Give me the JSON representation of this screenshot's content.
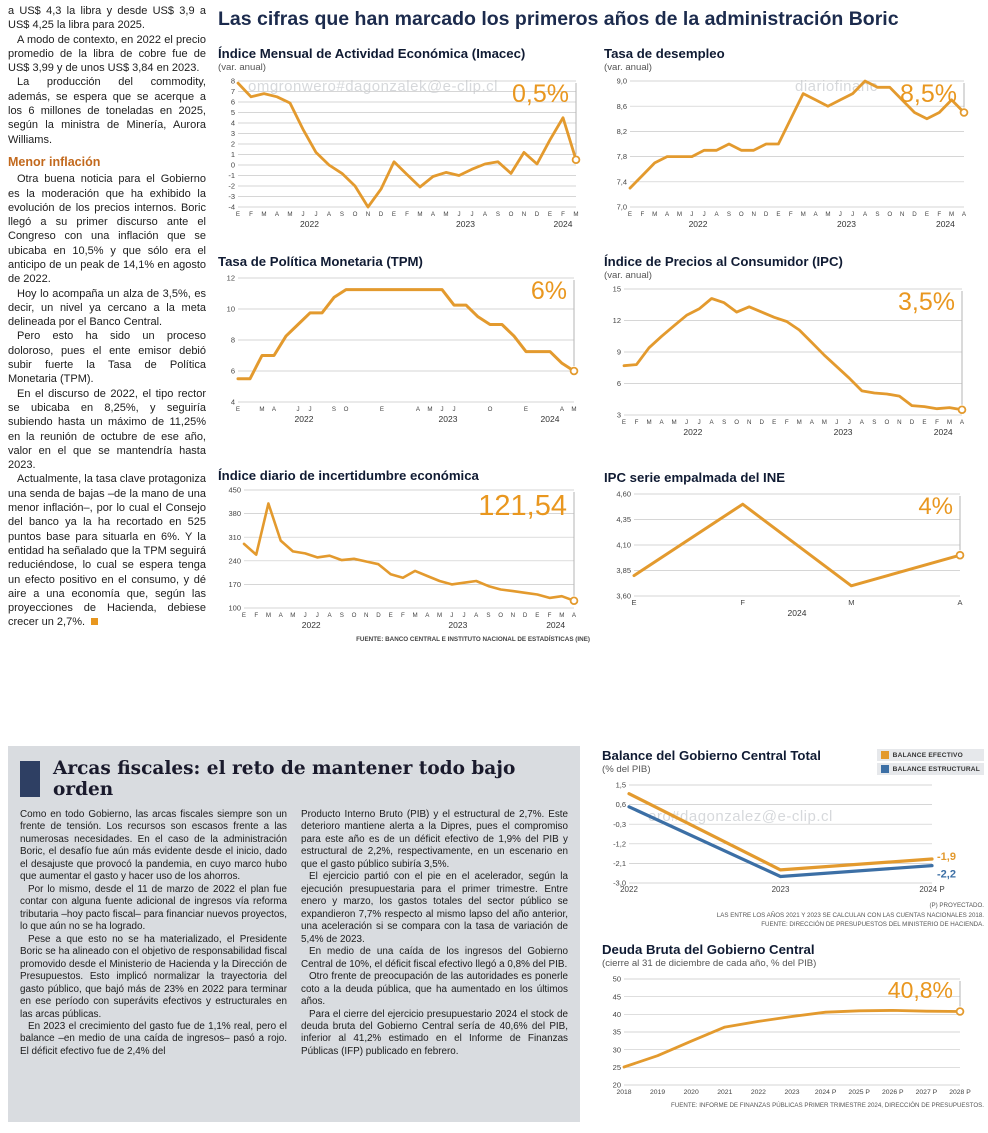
{
  "watermarks": [
    "omgronwero#dagonzalek@e-clip.cl",
    "diariofinanc",
    "ero#dagonzalez@e-clip.cl"
  ],
  "left_column": {
    "paragraphs": [
      "a US$ 4,3 la libra y desde US$ 3,9 a US$ 4,25 la libra para 2025.",
      "A modo de contexto, en 2022 el precio promedio de la libra de cobre fue de US$ 3,99 y de unos US$ 3,84 en 2023.",
      "La producción del commodity, además, se espera que se acerque a los 6 millones de toneladas en 2025, según la ministra de Minería, Aurora Williams.",
      "Otra buena noticia para el Gobierno es la moderación que ha exhibido la evolución de los precios internos. Boric llegó a su primer discurso ante el Congreso con una inflación que se ubicaba en 10,5% y que sólo era el anticipo de un peak de 14,1% en agosto de 2022.",
      "Hoy lo acompaña un alza de 3,5%, es decir, un nivel ya cercano a la meta delineada por el Banco Central.",
      "Pero esto ha sido un proceso doloroso, pues el ente emisor debió subir fuerte la Tasa de Política Monetaria (TPM).",
      "En el discurso de 2022, el tipo rector se ubicaba en 8,25%, y seguiría subiendo hasta un máximo de 11,25% en la reunión de octubre de ese año, valor en el que se mantendría hasta 2023.",
      "Actualmente, la tasa clave protagoniza una senda de bajas –de la mano de una menor inflación–, por lo cual el Consejo del banco ya la ha recortado en 525 puntos base para situarla en 6%. Y la entidad ha señalado que la TPM seguirá reduciéndose, lo cual se espera tenga un efecto positivo en el consumo, y dé aire a una economía que, según las proyecciones de Hacienda, debiese crecer un 2,7%."
    ],
    "subheading": "Menor inflación"
  },
  "main": {
    "title": "Las cifras que han marcado los primeros años de la administración Boric",
    "source_note": "FUENTE: BANCO CENTRAL E INSTITUTO NACIONAL DE ESTADÍSTICAS (INE)"
  },
  "fiscal": {
    "title": "Arcas fiscales: el reto de mantener todo bajo orden",
    "col1": [
      "Como en todo Gobierno, las arcas fiscales siempre son un frente de tensión. Los recursos son escasos frente a las numerosas necesidades. En el caso de la administración Boric, el desafío fue aún más evidente desde el inicio, dado el desajuste que provocó la pandemia, en cuyo marco hubo que aumentar el gasto y hacer uso de los ahorros.",
      "Por lo mismo, desde el 11 de marzo de 2022 el plan fue contar con alguna fuente adicional de ingresos vía reforma tributaria –hoy pacto fiscal– para financiar nuevos proyectos, lo que aún no se ha logrado.",
      "Pese a que esto no se ha materializado, el Presidente Boric se ha alineado con el objetivo de responsabilidad fiscal promovido desde el Ministerio de Hacienda y la Dirección de Presupuestos. Esto implicó normalizar la trayectoria del gasto público, que bajó más de 23% en 2022 para terminar en ese período con superávits efectivos y estructurales en las arcas públicas.",
      "En 2023 el crecimiento del gasto fue de 1,1% real, pero el balance –en medio de una caída de ingresos– pasó a rojo. El déficit efectivo fue de 2,4% del"
    ],
    "col2": [
      "Producto Interno Bruto (PIB) y el estructural de 2,7%. Este deterioro mantiene alerta a la Dipres, pues el compromiso para este año es de un déficit efectivo de 1,9% del PIB y estructural de 2,2%, respectivamente, en un escenario en que el gasto público subiría 3,5%.",
      "El ejercicio partió con el pie en el acelerador, según la ejecución presupuestaria para el primer trimestre. Entre enero y marzo, los gastos totales del sector público se expandieron 7,7% respecto al mismo lapso del año anterior, una aceleración si se compara con la tasa de variación de 5,4% de 2023.",
      "En medio de una caída de los ingresos del Gobierno Central de 10%, el déficit fiscal efectivo llegó a 0,8% del PIB.",
      "Otro frente de preocupación de las autoridades es ponerle coto a la deuda pública, que ha aumentado en los últimos años.",
      "Para el cierre del ejercicio presupuestario 2024 el stock de deuda bruta del Gobierno Central sería de 40,6% del PIB, inferior al 41,2% estimado en el Informe de Finanzas Públicas (IFP) publicado en febrero."
    ]
  },
  "colors": {
    "orange": "#E39A2E",
    "blue": "#3C6FA5",
    "headline_navy": "#1C2B4D",
    "subhead_brown": "#C2691D",
    "panel_gray": "#D9DCE0",
    "header_bar_navy": "#2E3F63"
  },
  "chart_data": [
    {
      "type": "line",
      "title": "Índice Mensual de Actividad Económica (Imacec)",
      "subtitle": "(var. anual)",
      "highlight": "0,5%",
      "color": "#E39A2E",
      "ylim": [
        -4,
        8
      ],
      "y_ticks": [
        {
          "v": 8,
          "l": "8"
        },
        {
          "v": 7,
          "l": "7"
        },
        {
          "v": 6,
          "l": "6"
        },
        {
          "v": 5,
          "l": "5"
        },
        {
          "v": 4,
          "l": "4"
        },
        {
          "v": 3,
          "l": "3"
        },
        {
          "v": 2,
          "l": "2"
        },
        {
          "v": 1,
          "l": "1"
        },
        {
          "v": 0,
          "l": "0"
        },
        {
          "v": -1,
          "l": "-1"
        },
        {
          "v": -2,
          "l": "-2"
        },
        {
          "v": -3,
          "l": "-3"
        },
        {
          "v": -4,
          "l": "-4"
        }
      ],
      "x_labels": [
        "E",
        "F",
        "M",
        "A",
        "M",
        "J",
        "J",
        "A",
        "S",
        "O",
        "N",
        "D",
        "E",
        "F",
        "M",
        "A",
        "M",
        "J",
        "J",
        "A",
        "S",
        "O",
        "N",
        "D",
        "E",
        "F",
        "M"
      ],
      "year_labels": [
        {
          "label": "2022",
          "from": 0,
          "to": 11
        },
        {
          "label": "2023",
          "from": 12,
          "to": 23
        },
        {
          "label": "2024",
          "from": 24,
          "to": 26
        }
      ],
      "values": [
        7.8,
        6.5,
        6.8,
        6.5,
        5.9,
        3.4,
        1.2,
        0.0,
        -0.8,
        -2.0,
        -4.0,
        -2.3,
        0.3,
        -0.9,
        -2.1,
        -1.1,
        -0.7,
        -1.0,
        -0.4,
        0.1,
        0.3,
        -0.8,
        1.2,
        0.1,
        2.4,
        4.5,
        0.5
      ]
    },
    {
      "type": "line",
      "title": "Tasa de desempleo",
      "subtitle": "(var. anual)",
      "highlight": "8,5%",
      "color": "#E39A2E",
      "ylim": [
        7.0,
        9.0
      ],
      "y_ticks": [
        {
          "v": 9.0,
          "l": "9,0"
        },
        {
          "v": 8.6,
          "l": "8,6"
        },
        {
          "v": 8.2,
          "l": "8,2"
        },
        {
          "v": 7.8,
          "l": "7,8"
        },
        {
          "v": 7.4,
          "l": "7,4"
        },
        {
          "v": 7.0,
          "l": "7,0"
        }
      ],
      "x_labels": [
        "E",
        "F",
        "M",
        "A",
        "M",
        "J",
        "J",
        "A",
        "S",
        "O",
        "N",
        "D",
        "E",
        "F",
        "M",
        "A",
        "M",
        "J",
        "J",
        "A",
        "S",
        "O",
        "N",
        "D",
        "E",
        "F",
        "M",
        "A"
      ],
      "year_labels": [
        {
          "label": "2022",
          "from": 0,
          "to": 11
        },
        {
          "label": "2023",
          "from": 12,
          "to": 23
        },
        {
          "label": "2024",
          "from": 24,
          "to": 27
        }
      ],
      "values": [
        7.3,
        7.5,
        7.7,
        7.8,
        7.8,
        7.8,
        7.9,
        7.9,
        8.0,
        7.9,
        7.9,
        8.0,
        8.0,
        8.4,
        8.8,
        8.7,
        8.6,
        8.7,
        8.8,
        9.0,
        8.9,
        8.9,
        8.7,
        8.5,
        8.4,
        8.5,
        8.7,
        8.5
      ]
    },
    {
      "type": "line",
      "title": "Tasa de Política Monetaria (TPM)",
      "subtitle": "",
      "highlight": "6%",
      "color": "#E39A2E",
      "ylim": [
        4,
        12
      ],
      "y_ticks": [
        {
          "v": 12,
          "l": "12"
        },
        {
          "v": 10,
          "l": "10"
        },
        {
          "v": 8,
          "l": "8"
        },
        {
          "v": 6,
          "l": "6"
        },
        {
          "v": 4,
          "l": "4"
        }
      ],
      "x_labels": [
        "E",
        "",
        "M",
        "A",
        "",
        "J",
        "J",
        "",
        "S",
        "O",
        "",
        "",
        "E",
        "",
        "",
        "A",
        "M",
        "J",
        "J",
        "",
        "",
        "O",
        "",
        "",
        "E",
        "",
        "",
        "A",
        "M"
      ],
      "year_labels": [
        {
          "label": "2022",
          "from": 0,
          "to": 11
        },
        {
          "label": "2023",
          "from": 12,
          "to": 23
        },
        {
          "label": "2024",
          "from": 24,
          "to": 28
        }
      ],
      "values": [
        5.5,
        5.5,
        7.0,
        7.0,
        8.25,
        9.0,
        9.75,
        9.75,
        10.75,
        11.25,
        11.25,
        11.25,
        11.25,
        11.25,
        11.25,
        11.25,
        11.25,
        11.25,
        10.25,
        10.25,
        9.5,
        9.0,
        9.0,
        8.25,
        7.25,
        7.25,
        7.25,
        6.5,
        6.0
      ]
    },
    {
      "type": "line",
      "title": "Índice de Precios al Consumidor (IPC)",
      "subtitle": "(var. anual)",
      "highlight": "3,5%",
      "color": "#E39A2E",
      "ylim": [
        3,
        15
      ],
      "y_ticks": [
        {
          "v": 15,
          "l": "15"
        },
        {
          "v": 12,
          "l": "12"
        },
        {
          "v": 9,
          "l": "9"
        },
        {
          "v": 6,
          "l": "6"
        },
        {
          "v": 3,
          "l": "3"
        }
      ],
      "x_labels": [
        "E",
        "F",
        "M",
        "A",
        "M",
        "J",
        "J",
        "A",
        "S",
        "O",
        "N",
        "D",
        "E",
        "F",
        "M",
        "A",
        "M",
        "J",
        "J",
        "A",
        "S",
        "O",
        "N",
        "D",
        "E",
        "F",
        "M",
        "A"
      ],
      "year_labels": [
        {
          "label": "2022",
          "from": 0,
          "to": 11
        },
        {
          "label": "2023",
          "from": 12,
          "to": 23
        },
        {
          "label": "2024",
          "from": 24,
          "to": 27
        }
      ],
      "values": [
        7.7,
        7.8,
        9.4,
        10.5,
        11.5,
        12.5,
        13.1,
        14.1,
        13.7,
        12.8,
        13.3,
        12.8,
        12.3,
        11.9,
        11.1,
        9.9,
        8.7,
        7.6,
        6.5,
        5.3,
        5.1,
        5.0,
        4.8,
        3.9,
        3.8,
        3.6,
        3.7,
        3.5
      ]
    },
    {
      "type": "line",
      "title": "Índice diario de incertidumbre económica",
      "subtitle": "",
      "highlight": "121,54",
      "color": "#E39A2E",
      "ylim": [
        100,
        450
      ],
      "y_ticks": [
        {
          "v": 450,
          "l": "450"
        },
        {
          "v": 380,
          "l": "380"
        },
        {
          "v": 310,
          "l": "310"
        },
        {
          "v": 240,
          "l": "240"
        },
        {
          "v": 170,
          "l": "170"
        },
        {
          "v": 100,
          "l": "100"
        }
      ],
      "x_labels": [
        "E",
        "F",
        "M",
        "A",
        "M",
        "J",
        "J",
        "A",
        "S",
        "O",
        "N",
        "D",
        "E",
        "F",
        "M",
        "A",
        "M",
        "J",
        "J",
        "A",
        "S",
        "O",
        "N",
        "D",
        "E",
        "F",
        "M",
        "A"
      ],
      "year_labels": [
        {
          "label": "2022",
          "from": 0,
          "to": 11
        },
        {
          "label": "2023",
          "from": 12,
          "to": 23
        },
        {
          "label": "2024",
          "from": 24,
          "to": 27
        }
      ],
      "values": [
        290,
        258,
        410,
        300,
        268,
        262,
        250,
        255,
        242,
        246,
        238,
        230,
        200,
        190,
        210,
        195,
        180,
        170,
        175,
        180,
        165,
        155,
        150,
        145,
        140,
        130,
        135,
        121.54
      ]
    },
    {
      "type": "line",
      "title": "IPC serie empalmada del INE",
      "subtitle": "",
      "highlight": "4%",
      "color": "#E39A2E",
      "ylim": [
        3.6,
        4.6
      ],
      "y_ticks": [
        {
          "v": 4.6,
          "l": "4,60"
        },
        {
          "v": 4.35,
          "l": "4,35"
        },
        {
          "v": 4.1,
          "l": "4,10"
        },
        {
          "v": 3.85,
          "l": "3,85"
        },
        {
          "v": 3.6,
          "l": "3,60"
        }
      ],
      "x_labels": [
        "E",
        "F",
        "M",
        "A"
      ],
      "year_labels": [
        {
          "label": "2024",
          "from": 0,
          "to": 3
        }
      ],
      "values": [
        3.8,
        4.5,
        3.7,
        4.0
      ]
    },
    {
      "type": "line",
      "title": "Balance del Gobierno Central Total",
      "subtitle": "(% del PIB)",
      "ylim": [
        -3.0,
        1.5
      ],
      "y_ticks": [
        {
          "v": 1.5,
          "l": "1,5"
        },
        {
          "v": 0.6,
          "l": "0,6"
        },
        {
          "v": -0.3,
          "l": "-0,3"
        },
        {
          "v": -1.2,
          "l": "-1,2"
        },
        {
          "v": -2.1,
          "l": "-2,1"
        },
        {
          "v": -3.0,
          "l": "-3,0"
        }
      ],
      "x_labels": [
        "2022",
        "2023",
        "2024 P"
      ],
      "series": [
        {
          "name": "BALANCE EFECTIVO",
          "color": "#E39A2E",
          "values": [
            1.1,
            -2.4,
            -1.9
          ],
          "end_label": "-1,9"
        },
        {
          "name": "BALANCE ESTRUCTURAL",
          "color": "#3C6FA5",
          "values": [
            0.5,
            -2.7,
            -2.2
          ],
          "end_label": "-2,2"
        }
      ],
      "notes": [
        "(P) PROYECTADO.",
        "LAS ENTRE LOS AÑOS 2021 Y 2023 SE CALCULAN CON LAS CUENTAS NACIONALES 2018.",
        "FUENTE: DIRECCIÓN DE PRESUPUESTOS DEL MINISTERIO DE HACIENDA."
      ]
    },
    {
      "type": "line",
      "title": "Deuda Bruta del Gobierno Central",
      "subtitle": "(cierre al 31 de diciembre de cada año, % del PIB)",
      "highlight": "40,8%",
      "color": "#E39A2E",
      "ylim": [
        20,
        50
      ],
      "y_ticks": [
        {
          "v": 50,
          "l": "50"
        },
        {
          "v": 45,
          "l": "45"
        },
        {
          "v": 40,
          "l": "40"
        },
        {
          "v": 35,
          "l": "35"
        },
        {
          "v": 30,
          "l": "30"
        },
        {
          "v": 25,
          "l": "25"
        },
        {
          "v": 20,
          "l": "20"
        }
      ],
      "x_labels": [
        "2018",
        "2019",
        "2020",
        "2021",
        "2022",
        "2023",
        "2024 P",
        "2025 P",
        "2026 P",
        "2027 P",
        "2028 P"
      ],
      "values": [
        25.1,
        28.3,
        32.4,
        36.4,
        38.0,
        39.4,
        40.6,
        41.0,
        41.1,
        40.9,
        40.8
      ],
      "source": "FUENTE: INFORME DE FINANZAS PÚBLICAS PRIMER TRIMESTRE 2024, DIRECCIÓN DE PRESUPUESTOS."
    }
  ]
}
